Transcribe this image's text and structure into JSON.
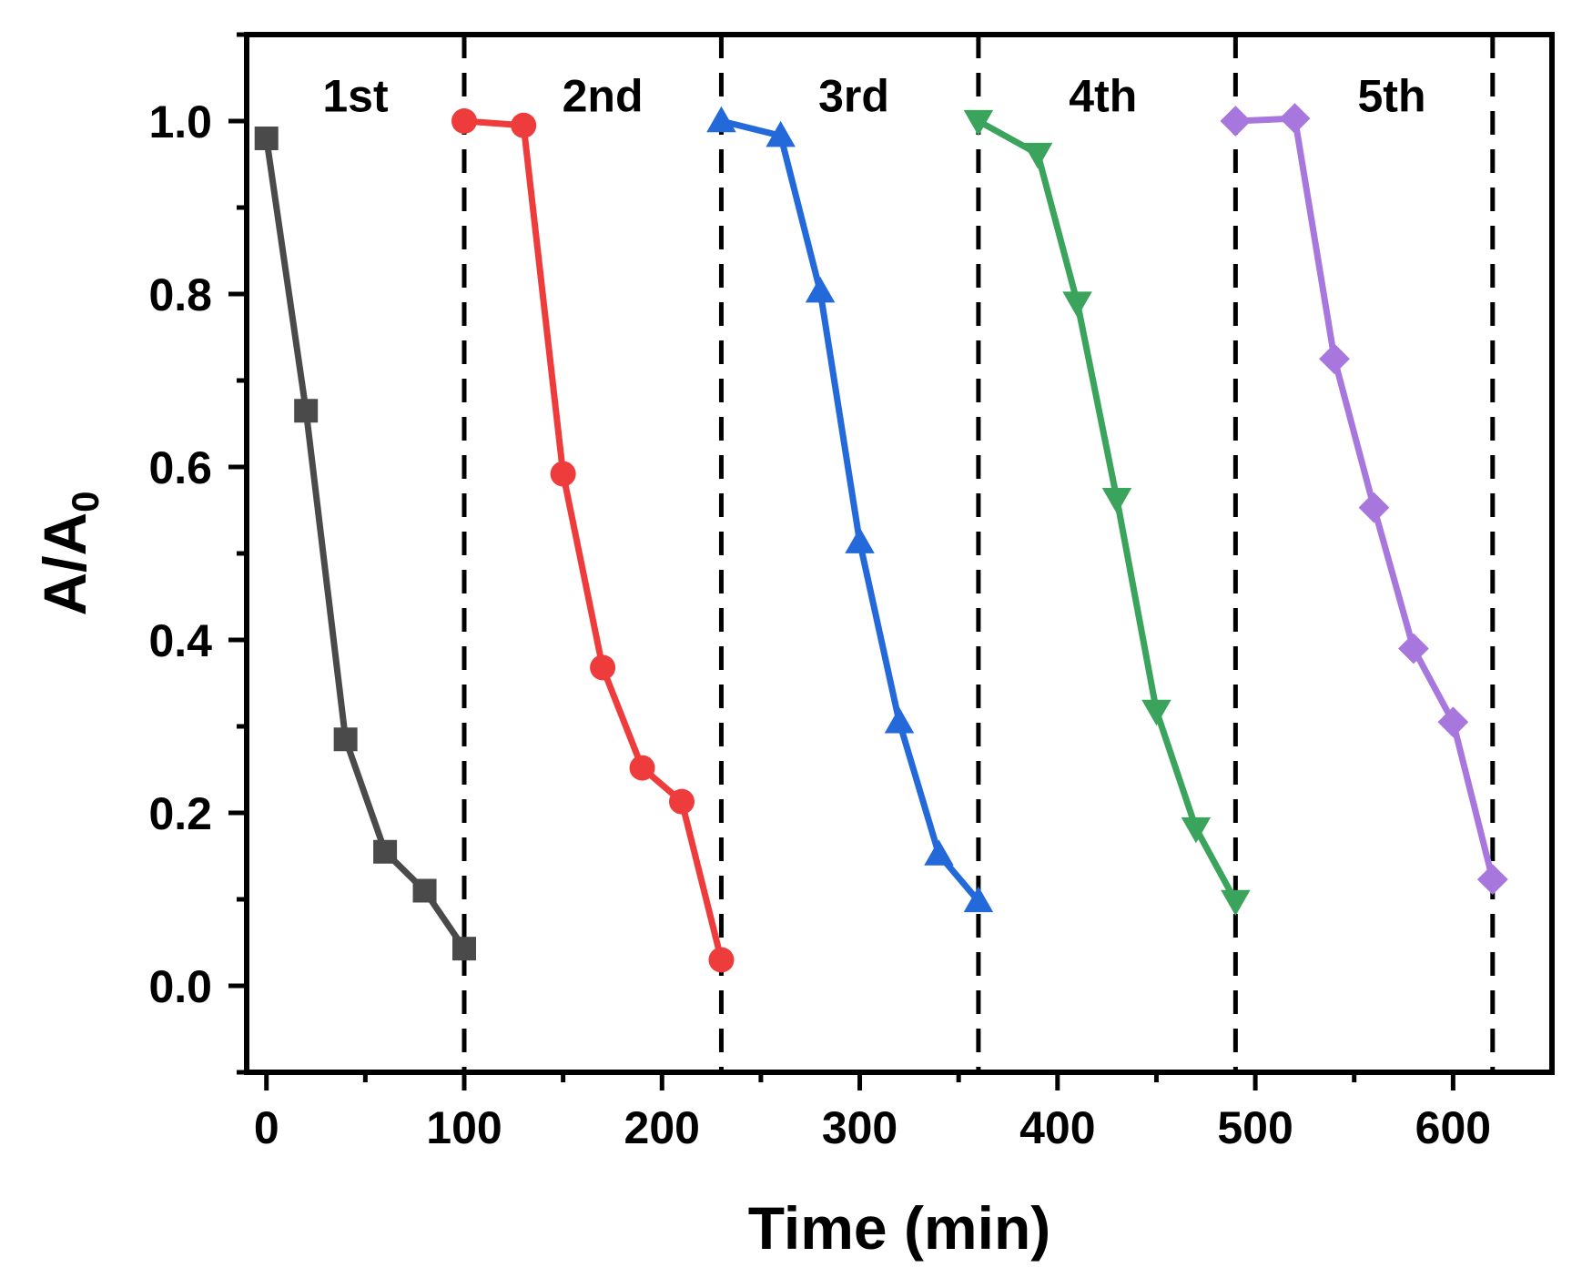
{
  "chart_data": {
    "type": "line",
    "title": "",
    "xlabel": "Time (min)",
    "ylabel_main": "A/A",
    "ylabel_sub": "0",
    "xlim": [
      -10,
      650
    ],
    "ylim": [
      -0.1,
      1.1
    ],
    "xticks": [
      0,
      100,
      200,
      300,
      400,
      500,
      600
    ],
    "xtick_labels": [
      "0",
      "100",
      "200",
      "300",
      "400",
      "500",
      "600"
    ],
    "yticks": [
      0.0,
      0.2,
      0.4,
      0.6,
      0.8,
      1.0
    ],
    "ytick_labels": [
      "0.0",
      "0.2",
      "0.4",
      "0.6",
      "0.8",
      "1.0"
    ],
    "cycle_boundaries": [
      100,
      230,
      360,
      490,
      620
    ],
    "cycle_labels": [
      {
        "text": "1st",
        "x": 45,
        "y": 1.03
      },
      {
        "text": "2nd",
        "x": 170,
        "y": 1.03
      },
      {
        "text": "3rd",
        "x": 297,
        "y": 1.03
      },
      {
        "text": "4th",
        "x": 423,
        "y": 1.03
      },
      {
        "text": "5th",
        "x": 569,
        "y": 1.03
      }
    ],
    "series": [
      {
        "name": "1st",
        "color": "#4a4a4a",
        "marker": "square",
        "x": [
          0,
          20,
          40,
          60,
          80,
          100
        ],
        "y": [
          0.98,
          0.665,
          0.285,
          0.155,
          0.11,
          0.043
        ]
      },
      {
        "name": "2nd",
        "color": "#ee3b3b",
        "marker": "circle",
        "x": [
          100,
          130,
          150,
          170,
          190,
          210,
          230
        ],
        "y": [
          1.0,
          0.995,
          0.592,
          0.368,
          0.252,
          0.213,
          0.03
        ]
      },
      {
        "name": "3rd",
        "color": "#2369d9",
        "marker": "triangle-up",
        "x": [
          230,
          260,
          280,
          300,
          320,
          340,
          360
        ],
        "y": [
          1.0,
          0.983,
          0.803,
          0.513,
          0.305,
          0.152,
          0.098
        ]
      },
      {
        "name": "4th",
        "color": "#3aa35c",
        "marker": "triangle-down",
        "x": [
          360,
          390,
          410,
          430,
          450,
          470,
          490
        ],
        "y": [
          1.0,
          0.962,
          0.79,
          0.563,
          0.318,
          0.182,
          0.098
        ]
      },
      {
        "name": "5th",
        "color": "#a877dd",
        "marker": "diamond",
        "x": [
          490,
          520,
          540,
          560,
          580,
          600,
          620
        ],
        "y": [
          1.0,
          1.003,
          0.725,
          0.553,
          0.39,
          0.305,
          0.123
        ]
      }
    ]
  }
}
